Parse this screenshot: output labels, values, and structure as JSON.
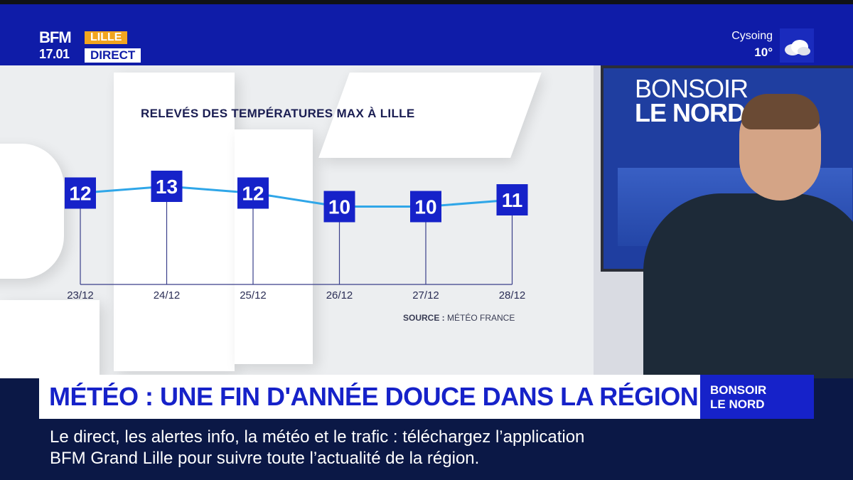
{
  "logo": {
    "brand": "BFM",
    "time": "17.01",
    "city": "LILLE",
    "live": "DIRECT"
  },
  "weather": {
    "city": "Cysoing",
    "temp": "10°",
    "icon": "cloud-icon"
  },
  "chart_data": {
    "type": "line",
    "title": "RELEVÉS DES TEMPÉRATURES MAX À LILLE",
    "categories": [
      "23/12",
      "24/12",
      "25/12",
      "26/12",
      "27/12",
      "28/12"
    ],
    "values": [
      12,
      13,
      12,
      10,
      10,
      11
    ],
    "value_labels": [
      "12",
      "13",
      "12",
      "10",
      "10",
      "11"
    ],
    "line_color": "#2fa6e8",
    "marker_color": "#1622c9",
    "source_label": "SOURCE :",
    "source_value": "MÉTÉO FRANCE"
  },
  "studio_screen": {
    "line1": "BONSOIR",
    "line2": "LE NORD"
  },
  "headline": "MÉTÉO : UNE FIN D'ANNÉE DOUCE DANS LA RÉGION",
  "show_tag": {
    "line1": "BONSOIR",
    "line2": "LE NORD"
  },
  "ticker": {
    "line1": "Le direct, les alertes info, la météo et le trafic : téléchargez l’application",
    "line2": "BFM Grand Lille pour suivre toute l’actualité de la région."
  },
  "colors": {
    "brand_blue": "#1622c9",
    "accent_orange": "#f2a51f"
  }
}
